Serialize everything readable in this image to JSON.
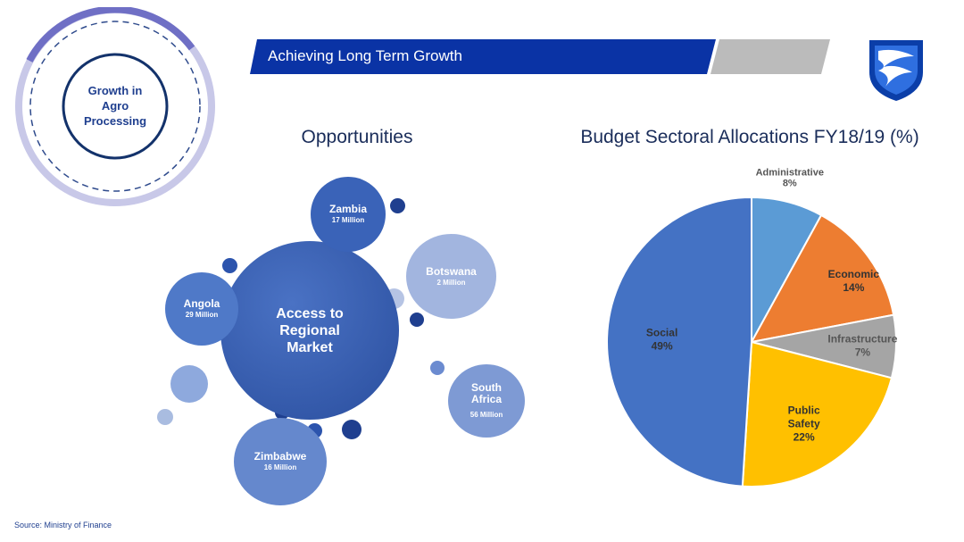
{
  "badge": {
    "text": "Growth in Agro Processing"
  },
  "header": {
    "title": "Achieving Long Term Growth"
  },
  "opportunities": {
    "heading": "Opportunities",
    "center": "Access to Regional Market",
    "markets": [
      {
        "name": "Zambia",
        "value": "17 Million"
      },
      {
        "name": "Botswana",
        "value": "2 Million"
      },
      {
        "name": "Angola",
        "value": "29 Million"
      },
      {
        "name": "South Africa",
        "value": "56 Million"
      },
      {
        "name": "Zimbabwe",
        "value": "16 Million"
      }
    ]
  },
  "chart_data": {
    "type": "pie",
    "title": "Budget Sectoral Allocations FY18/19 (%)",
    "categories": [
      "Administrative",
      "Economic",
      "Infrastructure",
      "Public Safety",
      "Social"
    ],
    "values": [
      8,
      14,
      7,
      22,
      49
    ],
    "value_labels": [
      "8%",
      "14%",
      "7%",
      "22%",
      "49%"
    ],
    "colors": [
      "#5b9bd5",
      "#ed7d31",
      "#a5a5a5",
      "#ffc000",
      "#4472c4"
    ]
  },
  "footer": {
    "source": "Source: Ministry of Finance"
  }
}
